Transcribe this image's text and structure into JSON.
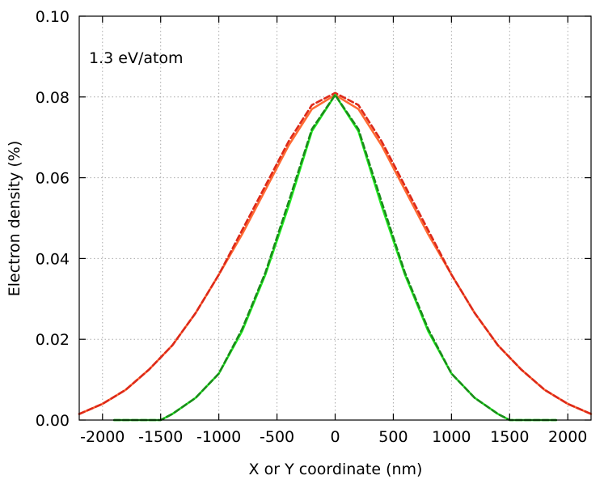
{
  "chart_data": {
    "type": "line",
    "annotation": "1.3 eV/atom",
    "xlabel": "X or Y coordinate (nm)",
    "ylabel": "Electron density (%)",
    "xlim": [
      -2200,
      2200
    ],
    "ylim": [
      0,
      0.1
    ],
    "x_ticks": [
      -2000,
      -1500,
      -1000,
      -500,
      0,
      500,
      1000,
      1500,
      2000
    ],
    "x_tick_labels": [
      "-2000",
      "-1500",
      "-1000",
      "-500",
      "0",
      "500",
      "1000",
      "1500",
      "2000"
    ],
    "y_ticks": [
      0,
      0.02,
      0.04,
      0.06,
      0.08,
      0.1
    ],
    "y_tick_labels": [
      "0.00",
      "0.02",
      "0.04",
      "0.06",
      "0.08",
      "0.10"
    ],
    "grid": true,
    "series": [
      {
        "style": "solid",
        "color": "#ff6a33",
        "x": [
          -2200,
          -2000,
          -1800,
          -1600,
          -1400,
          -1200,
          -1000,
          -800,
          -600,
          -400,
          -200,
          0,
          200,
          400,
          600,
          800,
          1000,
          1200,
          1400,
          1600,
          1800,
          2000,
          2200
        ],
        "y": [
          0.0015,
          0.004,
          0.0075,
          0.0125,
          0.0185,
          0.0265,
          0.036,
          0.046,
          0.057,
          0.068,
          0.077,
          0.0805,
          0.077,
          0.068,
          0.057,
          0.046,
          0.036,
          0.0265,
          0.0185,
          0.0125,
          0.0075,
          0.004,
          0.0015
        ]
      },
      {
        "style": "dashed",
        "color": "#dd2a1a",
        "x": [
          -2200,
          -2000,
          -1800,
          -1600,
          -1400,
          -1200,
          -1000,
          -800,
          -600,
          -400,
          -200,
          0,
          200,
          400,
          600,
          800,
          1000,
          1200,
          1400,
          1600,
          1800,
          2000,
          2200
        ],
        "y": [
          0.0015,
          0.004,
          0.0075,
          0.0125,
          0.0185,
          0.0265,
          0.036,
          0.047,
          0.058,
          0.069,
          0.078,
          0.081,
          0.078,
          0.069,
          0.058,
          0.047,
          0.036,
          0.0265,
          0.0185,
          0.0125,
          0.0075,
          0.004,
          0.0015
        ]
      },
      {
        "style": "solid",
        "color": "#22ee22",
        "x": [
          -1900,
          -1500,
          -1400,
          -1200,
          -1000,
          -800,
          -600,
          -400,
          -200,
          0,
          200,
          400,
          600,
          800,
          1000,
          1200,
          1400,
          1500,
          1900
        ],
        "y": [
          0,
          0,
          0.0015,
          0.0055,
          0.0115,
          0.022,
          0.036,
          0.053,
          0.0715,
          0.0805,
          0.0715,
          0.053,
          0.036,
          0.022,
          0.0115,
          0.0055,
          0.0015,
          0,
          0
        ]
      },
      {
        "style": "dashed",
        "color": "#1a8c1a",
        "x": [
          -1900,
          -1500,
          -1400,
          -1200,
          -1000,
          -800,
          -600,
          -400,
          -200,
          0,
          200,
          400,
          600,
          800,
          1000,
          1200,
          1400,
          1500,
          1900
        ],
        "y": [
          0,
          0,
          0.0015,
          0.0055,
          0.0115,
          0.0225,
          0.0365,
          0.054,
          0.072,
          0.0805,
          0.072,
          0.054,
          0.0365,
          0.0225,
          0.0115,
          0.0055,
          0.0015,
          0,
          0
        ]
      }
    ]
  }
}
